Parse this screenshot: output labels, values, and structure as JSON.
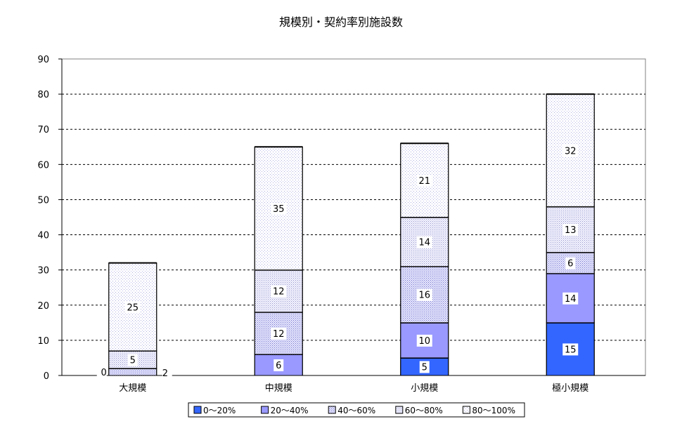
{
  "chart_data": {
    "type": "bar",
    "stacked": true,
    "title": "規模別・契約率別施設数",
    "xlabel": "",
    "ylabel": "",
    "categories": [
      "大規模",
      "中規模",
      "小規模",
      "極小規模"
    ],
    "ylim": [
      0,
      90
    ],
    "yticks": [
      0,
      10,
      20,
      30,
      40,
      50,
      60,
      70,
      80,
      90
    ],
    "grid": true,
    "legend_position": "bottom",
    "series": [
      {
        "name": "0～20%",
        "values": [
          0,
          0,
          5,
          15
        ],
        "color": "#3366ff",
        "pattern": "solid"
      },
      {
        "name": "20～40%",
        "values": [
          0,
          6,
          10,
          14
        ],
        "color": "#9999ff",
        "pattern": "solid"
      },
      {
        "name": "40～60%",
        "values": [
          2,
          12,
          16,
          6
        ],
        "color": "#ccccff",
        "pattern": "dotted"
      },
      {
        "name": "60～80%",
        "values": [
          5,
          12,
          14,
          13
        ],
        "color": "#e6e6f5",
        "pattern": "dotted"
      },
      {
        "name": "80～100%",
        "values": [
          25,
          35,
          21,
          32
        ],
        "color": "#f2f2fa",
        "pattern": "dotted"
      }
    ],
    "data_labels": [
      [
        "0",
        "",
        "2",
        "5",
        "25"
      ],
      [
        "",
        "6",
        "12",
        "12",
        "35"
      ],
      [
        "5",
        "10",
        "16",
        "14",
        "21"
      ],
      [
        "15",
        "14",
        "6",
        "13",
        "32"
      ]
    ]
  }
}
